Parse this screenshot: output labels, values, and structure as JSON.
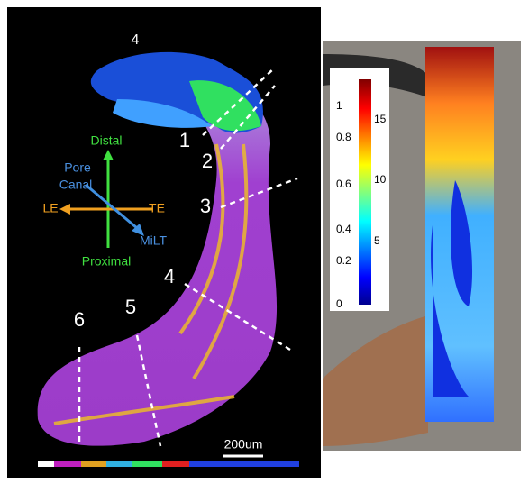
{
  "figure": {
    "top_label": "4",
    "axes": {
      "distal": "Distal",
      "pore_canal": [
        "Pore",
        "Canal"
      ],
      "le": "LE",
      "te": "TE",
      "milt": "MiLT",
      "proximal": "Proximal"
    },
    "sections": [
      "1",
      "2",
      "3",
      "4",
      "5",
      "6"
    ],
    "scale_bar": "200um",
    "colorbar": {
      "left_ticks": [
        "1",
        "0.8",
        "0.6",
        "0.4",
        "0.2",
        "0"
      ],
      "right_ticks": [
        "15",
        "10",
        "5"
      ]
    }
  }
}
